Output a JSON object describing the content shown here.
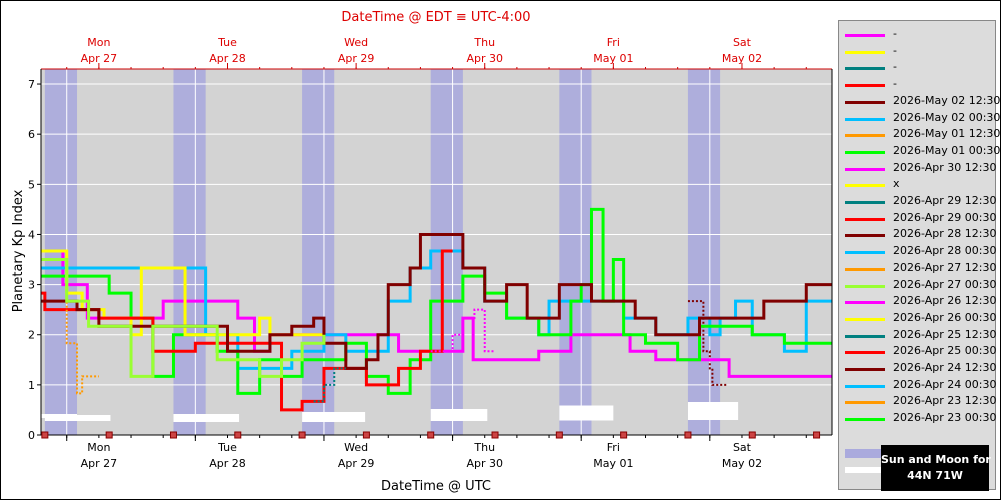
{
  "chart_data": {
    "type": "line",
    "title": "DateTime @ EDT ≡ UTC-4:00",
    "xlabel": "DateTime @ UTC",
    "ylabel": "Planetary Kp Index",
    "ylim": [
      0,
      7.3
    ],
    "y_ticks": [
      0,
      1,
      2,
      3,
      4,
      5,
      6,
      7
    ],
    "top_axis_labels": [
      {
        "day": "Mon",
        "date": "Apr 27"
      },
      {
        "day": "Tue",
        "date": "Apr 28"
      },
      {
        "day": "Wed",
        "date": "Apr 29"
      },
      {
        "day": "Thu",
        "date": "Apr 30"
      },
      {
        "day": "Fri",
        "date": "May 01"
      },
      {
        "day": "Sat",
        "date": "May 02"
      }
    ],
    "bottom_axis_labels": [
      {
        "day": "Mon",
        "date": "Apr 27"
      },
      {
        "day": "Tue",
        "date": "Apr 28"
      },
      {
        "day": "Wed",
        "date": "Apr 29"
      },
      {
        "day": "Thu",
        "date": "Apr 30"
      },
      {
        "day": "Fri",
        "date": "May 01"
      },
      {
        "day": "Sat",
        "date": "May 02"
      }
    ],
    "x_range_days": [
      -0.2,
      5.95
    ],
    "night_bands_days": [
      [
        -0.17,
        0.08
      ],
      [
        0.83,
        1.08
      ],
      [
        1.83,
        2.08
      ],
      [
        2.83,
        3.08
      ],
      [
        3.83,
        4.08
      ],
      [
        4.83,
        5.08
      ]
    ],
    "sun_moon_bars_days": [
      [
        -0.22,
        0.08
      ],
      [
        -0.17,
        0.34
      ],
      [
        0.83,
        1.34
      ],
      [
        1.83,
        2.32
      ],
      [
        2.83,
        3.27
      ],
      [
        3.83,
        4.25
      ],
      [
        4.83,
        5.22
      ]
    ],
    "grid": true,
    "legend_placement": "right",
    "series": [
      {
        "name": "2026-May 02 12:30",
        "color": "#800000",
        "dashed": true,
        "x": [
          4.83,
          4.92,
          4.95,
          5.0,
          5.02,
          5.13
        ],
        "y": [
          2.67,
          2.67,
          1.67,
          1.33,
          1.0,
          1.0
        ]
      },
      {
        "name": "-",
        "color": "#ff00ff",
        "dashed": false,
        "x": [
          -0.2,
          -0.08,
          -0.03,
          0.0,
          0.08,
          0.16,
          0.21,
          0.3,
          0.5,
          0.65,
          0.75,
          0.96,
          1.0,
          1.2,
          1.33,
          1.46,
          1.58,
          1.75,
          1.98,
          2.25,
          2.58,
          2.76,
          2.88,
          3.08,
          3.16,
          3.36,
          3.54,
          3.67,
          3.92,
          4.08,
          4.17,
          4.38,
          4.58,
          4.92,
          5.15,
          5.95
        ],
        "y": [
          3.67,
          3.67,
          3.0,
          3.0,
          3.0,
          2.33,
          2.33,
          2.33,
          2.33,
          2.33,
          2.67,
          2.67,
          2.67,
          2.67,
          2.33,
          1.67,
          2.0,
          2.0,
          2.0,
          2.0,
          1.67,
          1.67,
          1.67,
          2.33,
          1.5,
          1.5,
          1.5,
          1.67,
          2.0,
          2.0,
          2.0,
          1.67,
          1.5,
          1.5,
          1.17,
          1.17
        ]
      },
      {
        "name": "2026-May 02 00:30",
        "color": "#00bfff",
        "dashed": false,
        "x": [
          -0.2,
          -0.17,
          1.08,
          1.33,
          1.58,
          1.75,
          2.0,
          2.17,
          2.5,
          2.67,
          2.83,
          3.08,
          3.25,
          3.42,
          3.67,
          3.75,
          3.92,
          4.17,
          4.33,
          4.58,
          4.83,
          5.0,
          5.08,
          5.2,
          5.33,
          5.58,
          5.75,
          5.95
        ],
        "y": [
          3.33,
          3.33,
          2.0,
          1.33,
          1.33,
          1.67,
          2.0,
          1.67,
          2.67,
          3.33,
          3.67,
          3.33,
          2.67,
          2.33,
          2.0,
          2.67,
          2.67,
          2.67,
          2.33,
          2.0,
          2.33,
          2.0,
          2.33,
          2.67,
          2.0,
          1.67,
          2.67,
          2.67
        ]
      },
      {
        "name": "2026-May 01 00:30",
        "color": "#00ff00",
        "dashed": false,
        "x": [
          -0.2,
          0.0,
          0.33,
          0.5,
          0.67,
          0.83,
          1.17,
          1.33,
          1.5,
          1.67,
          1.83,
          2.17,
          2.33,
          2.5,
          2.67,
          2.83,
          3.08,
          3.25,
          3.42,
          3.67,
          3.92,
          4.0,
          4.08,
          4.17,
          4.25,
          4.33,
          4.5,
          4.75,
          4.92,
          5.17,
          5.33,
          5.58,
          5.95
        ],
        "y": [
          3.17,
          3.17,
          2.83,
          2.33,
          1.17,
          2.0,
          1.67,
          0.83,
          1.5,
          1.17,
          1.5,
          1.83,
          1.17,
          0.83,
          1.5,
          2.67,
          3.17,
          2.83,
          2.33,
          2.0,
          2.67,
          3.0,
          4.5,
          2.67,
          3.5,
          2.0,
          1.83,
          1.5,
          2.17,
          2.17,
          2.0,
          1.83,
          1.83
        ]
      },
      {
        "name": "2026-Apr 30 12:30",
        "color": "#ffff00",
        "dashed": false,
        "x": [
          -0.2,
          -0.17,
          0.0,
          0.12,
          0.29,
          0.5,
          0.58,
          0.75,
          0.92,
          1.0,
          1.25,
          1.5,
          1.58,
          1.75,
          2.0
        ],
        "y": [
          3.67,
          3.67,
          2.83,
          2.5,
          2.33,
          2.0,
          3.33,
          3.33,
          2.0,
          2.0,
          2.0,
          2.33,
          2.0,
          2.0,
          2.0
        ]
      },
      {
        "name": "2026-Apr 29 00:30",
        "color": "#ff0000",
        "dashed": false,
        "x": [
          -0.2,
          -0.17,
          0.0,
          0.08,
          0.25,
          0.42,
          0.58,
          0.67,
          0.83,
          0.92,
          1.0,
          1.67,
          1.83,
          2.0,
          2.25,
          2.33,
          2.42,
          2.58,
          2.75,
          2.92,
          3.0
        ],
        "y": [
          2.83,
          2.5,
          2.5,
          2.5,
          2.33,
          2.33,
          2.33,
          1.67,
          1.67,
          1.67,
          1.83,
          0.5,
          0.67,
          1.33,
          1.33,
          1.0,
          1.0,
          1.33,
          1.67,
          3.67,
          3.67
        ]
      },
      {
        "name": "2026-Apr 28 12:30",
        "color": "#800000",
        "dashed": false,
        "x": [
          -0.2,
          -0.17,
          0.08,
          0.25,
          0.42,
          0.58,
          0.75,
          1.08,
          1.25,
          1.42,
          1.58,
          1.75,
          1.92,
          2.0,
          2.17,
          2.33,
          2.42,
          2.5,
          2.67,
          2.75,
          2.83,
          2.92,
          3.08,
          3.25,
          3.42,
          3.58,
          3.75,
          3.83,
          4.0,
          4.08,
          4.25,
          4.42,
          4.58,
          4.75,
          4.92,
          5.08,
          5.25,
          5.42,
          5.58,
          5.75,
          5.95
        ],
        "y": [
          2.67,
          2.67,
          2.5,
          2.17,
          2.17,
          2.17,
          2.17,
          2.17,
          1.67,
          1.67,
          2.0,
          2.17,
          2.33,
          1.83,
          1.33,
          1.5,
          2.0,
          3.0,
          3.33,
          4.0,
          4.0,
          4.0,
          3.33,
          2.67,
          3.0,
          2.33,
          2.33,
          3.0,
          3.0,
          2.67,
          2.67,
          2.33,
          2.0,
          2.0,
          2.33,
          2.33,
          2.33,
          2.67,
          2.67,
          3.0,
          3.0
        ]
      },
      {
        "name": "2026-Apr 27 12:30",
        "color": "#ff9900",
        "dashed": true,
        "x": [
          -0.2,
          -0.12,
          0.0,
          0.05,
          0.08,
          0.12,
          0.25
        ],
        "y": [
          3.5,
          3.5,
          1.83,
          1.83,
          0.83,
          1.17,
          1.17
        ]
      },
      {
        "name": "2026-Apr 27 00:30",
        "color": "#99ff33",
        "dashed": false,
        "x": [
          -0.2,
          -0.17,
          0.0,
          0.17,
          0.33,
          0.5,
          0.67,
          0.83,
          1.17,
          1.5,
          1.67,
          1.83,
          2.0
        ],
        "y": [
          3.5,
          3.5,
          2.67,
          2.17,
          2.17,
          1.17,
          2.17,
          2.17,
          1.5,
          1.17,
          1.5,
          1.83,
          2.0
        ]
      },
      {
        "name": "2026-Apr 26 12:30",
        "color": "#ff00ff",
        "dashed": true,
        "x": [
          2.83,
          3.0,
          3.08,
          3.17,
          3.25,
          3.33
        ],
        "y": [
          1.67,
          2.0,
          2.33,
          2.5,
          1.67,
          1.67
        ]
      },
      {
        "name": "2026-Apr 25 12:30",
        "color": "#008080",
        "dashed": true,
        "x": [
          1.92,
          2.0,
          2.08,
          2.17
        ],
        "y": [
          0.67,
          1.0,
          1.33,
          1.33
        ]
      }
    ]
  },
  "legend": {
    "items": [
      {
        "label": "-",
        "color": "#ff00ff"
      },
      {
        "label": "-",
        "color": "#ffff00"
      },
      {
        "label": "-",
        "color": "#008080"
      },
      {
        "label": "-",
        "color": "#ff0000"
      },
      {
        "label": "2026-May 02 12:30",
        "color": "#800000"
      },
      {
        "label": "2026-May 02 00:30",
        "color": "#00bfff"
      },
      {
        "label": "2026-May 01 12:30",
        "color": "#ff9900"
      },
      {
        "label": "2026-May 01 00:30",
        "color": "#00ff00"
      },
      {
        "label": "2026-Apr 30 12:30",
        "color": "#ff00ff"
      },
      {
        "label": "x",
        "color": "#ffff00"
      },
      {
        "label": "2026-Apr 29 12:30",
        "color": "#008080"
      },
      {
        "label": "2026-Apr 29 00:30",
        "color": "#ff0000"
      },
      {
        "label": "2026-Apr 28 12:30",
        "color": "#800000"
      },
      {
        "label": "2026-Apr 28 00:30",
        "color": "#00bfff"
      },
      {
        "label": "2026-Apr 27 12:30",
        "color": "#ff9900"
      },
      {
        "label": "2026-Apr 27 00:30",
        "color": "#99ff33"
      },
      {
        "label": "2026-Apr 26 12:30",
        "color": "#ff00ff"
      },
      {
        "label": "2026-Apr 26 00:30",
        "color": "#ffff00"
      },
      {
        "label": "2026-Apr 25 12:30",
        "color": "#008080"
      },
      {
        "label": "2026-Apr 25 00:30",
        "color": "#ff0000"
      },
      {
        "label": "2026-Apr 24 12:30",
        "color": "#800000"
      },
      {
        "label": "2026-Apr 24 00:30",
        "color": "#00bfff"
      },
      {
        "label": "2026-Apr 23 12:30",
        "color": "#ff9900"
      },
      {
        "label": "2026-Apr 23 00:30",
        "color": "#00ff00"
      }
    ],
    "night_band_color": "#aaaadd",
    "sun_moon_color": "#ffffff"
  },
  "sun_moon_box": {
    "line1": "Sun and Moon for",
    "line2": "44N 71W"
  }
}
